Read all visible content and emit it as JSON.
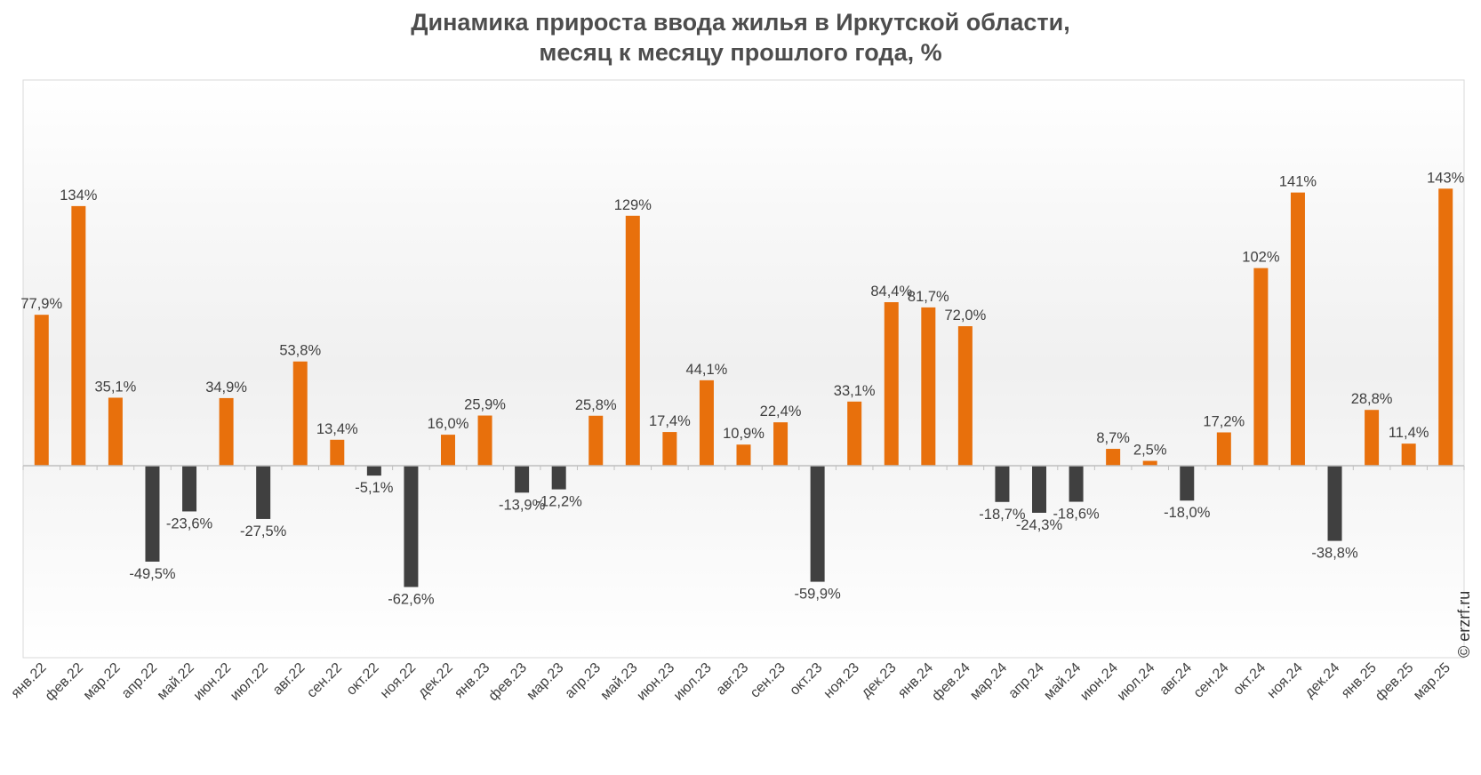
{
  "title_line1": "Динамика прироста ввода жилья в Иркутской области,",
  "title_line2": "месяц к месяцу прошлого года, %",
  "watermark": "© erzrf.ru",
  "colors": {
    "positive": "#e8700c",
    "negative": "#404040",
    "axis": "#bfbfbf",
    "plot_border": "#d9d9d9"
  },
  "chart_data": {
    "type": "bar",
    "title": "Динамика прироста ввода жилья в Иркутской области, месяц к месяцу прошлого года, %",
    "xlabel": "",
    "ylabel": "",
    "ylim": [
      -75,
      175
    ],
    "grid": false,
    "categories": [
      "янв.22",
      "фев.22",
      "мар.22",
      "апр.22",
      "май.22",
      "июн.22",
      "июл.22",
      "авг.22",
      "сен.22",
      "окт.22",
      "ноя.22",
      "дек.22",
      "янв.23",
      "фев.23",
      "мар.23",
      "апр.23",
      "май.23",
      "июн.23",
      "июл.23",
      "авг.23",
      "сен.23",
      "окт.23",
      "ноя.23",
      "дек.23",
      "янв.24",
      "фев.24",
      "мар.24",
      "апр.24",
      "май.24",
      "июн.24",
      "июл.24",
      "авг.24",
      "сен.24",
      "окт.24",
      "ноя.24",
      "дек.24",
      "янв.25",
      "фев.25",
      "мар.25"
    ],
    "values": [
      77.9,
      134,
      35.1,
      -49.5,
      -23.6,
      34.9,
      -27.5,
      53.8,
      13.4,
      -5.1,
      -62.6,
      16.0,
      25.9,
      -13.9,
      -12.2,
      25.8,
      129,
      17.4,
      44.1,
      10.9,
      22.4,
      -59.9,
      33.1,
      84.4,
      81.7,
      72.0,
      -18.7,
      -24.3,
      -18.6,
      8.7,
      2.5,
      -18.0,
      17.2,
      102,
      141,
      -38.8,
      28.8,
      11.4,
      143
    ],
    "labels": [
      "77,9%",
      "134%",
      "35,1%",
      "-49,5%",
      "-23,6%",
      "34,9%",
      "-27,5%",
      "53,8%",
      "13,4%",
      "-5,1%",
      "-62,6%",
      "16,0%",
      "25,9%",
      "-13,9%",
      "-12,2%",
      "25,8%",
      "129%",
      "17,4%",
      "44,1%",
      "10,9%",
      "22,4%",
      "-59,9%",
      "33,1%",
      "84,4%",
      "81,7%",
      "72,0%",
      "-18,7%",
      "-24,3%",
      "-18,6%",
      "8,7%",
      "2,5%",
      "-18,0%",
      "17,2%",
      "102%",
      "141%",
      "-38,8%",
      "28,8%",
      "11,4%",
      "143%"
    ]
  }
}
